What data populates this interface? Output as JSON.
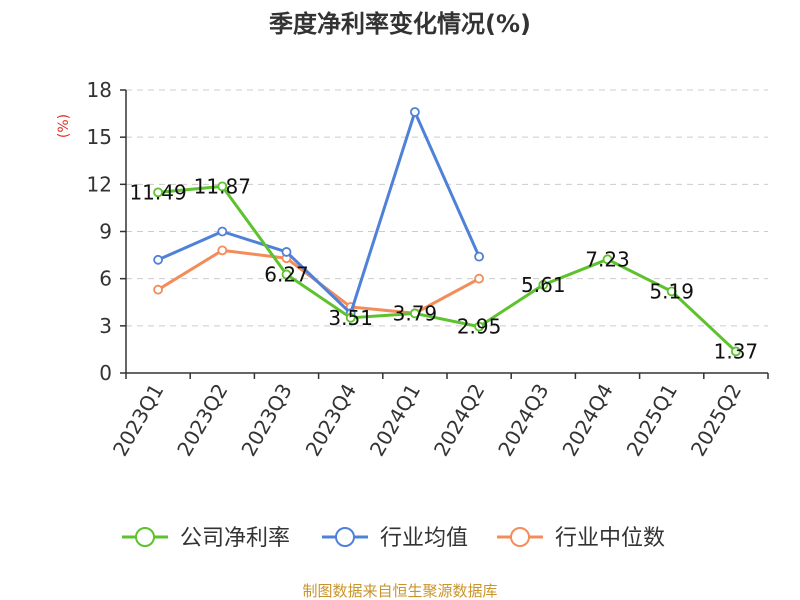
{
  "chart_data": {
    "type": "line",
    "title": "季度净利率变化情况(%)",
    "ylabel": "(%)",
    "xlabel": "",
    "ylim": [
      0,
      18
    ],
    "yticks": [
      0,
      3,
      6,
      9,
      12,
      15,
      18
    ],
    "categories": [
      "2023Q1",
      "2023Q2",
      "2023Q3",
      "2023Q4",
      "2024Q1",
      "2024Q2",
      "2024Q3",
      "2024Q4",
      "2025Q1",
      "2025Q2"
    ],
    "grid": true,
    "legend_position": "bottom",
    "series": [
      {
        "name": "公司净利率",
        "color": "#5dc22d",
        "values": [
          11.49,
          11.87,
          6.27,
          3.51,
          3.79,
          2.95,
          5.61,
          7.23,
          5.19,
          1.37
        ],
        "labels": [
          "11.49",
          "11.87",
          "6.27",
          "3.51",
          "3.79",
          "2.95",
          "5.61",
          "7.23",
          "5.19",
          "1.37"
        ]
      },
      {
        "name": "行业均值",
        "color": "#4f81d8",
        "values": [
          7.2,
          9.0,
          7.7,
          3.8,
          16.6,
          7.4,
          null,
          null,
          null,
          null
        ]
      },
      {
        "name": "行业中位数",
        "color": "#f48c5a",
        "values": [
          5.3,
          7.8,
          7.3,
          4.2,
          3.8,
          6.0,
          null,
          null,
          null,
          null
        ]
      }
    ]
  },
  "source": "制图数据来自恒生聚源数据库"
}
